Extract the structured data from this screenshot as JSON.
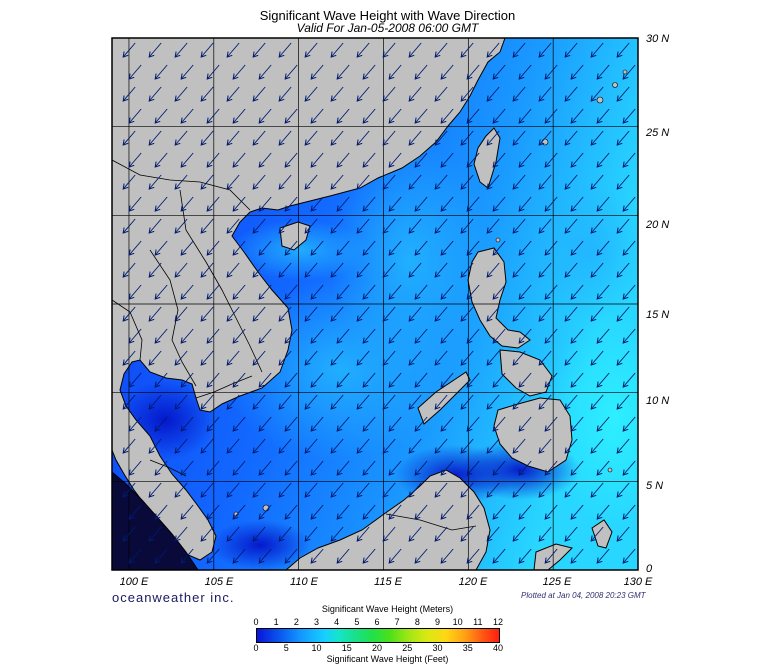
{
  "header": {
    "title": "Significant Wave Height with Wave Direction",
    "subtitle": "Valid For Jan-05-2008 06:00 GMT"
  },
  "map": {
    "lat_labels": [
      "30 N",
      "25 N",
      "20 N",
      "15 N",
      "10 N",
      "5 N",
      "0"
    ],
    "lon_labels": [
      "100 E",
      "105 E",
      "110 E",
      "115 E",
      "120 E",
      "125 E",
      "130 E"
    ],
    "lon_range": [
      99,
      130
    ],
    "lat_range": [
      0,
      30
    ],
    "land_color": "#c0c0c0",
    "ocean_low_color": "#0a1ee6",
    "ocean_high_color": "#2ad8ff",
    "arrow_direction": "toward southwest",
    "arrow_color": "#001a6e"
  },
  "footer": {
    "brand": "oceanweather inc.",
    "plotted": "Plotted at Jan 04, 2008 20:23 GMT"
  },
  "scale": {
    "meters_title": "Significant Wave Height (Meters)",
    "meters_ticks": [
      "0",
      "1",
      "2",
      "3",
      "4",
      "5",
      "6",
      "7",
      "8",
      "9",
      "10",
      "11",
      "12"
    ],
    "feet_title": "Significant Wave Height (Feet)",
    "feet_ticks": [
      "0",
      "5",
      "10",
      "15",
      "20",
      "25",
      "30",
      "35",
      "40"
    ]
  }
}
